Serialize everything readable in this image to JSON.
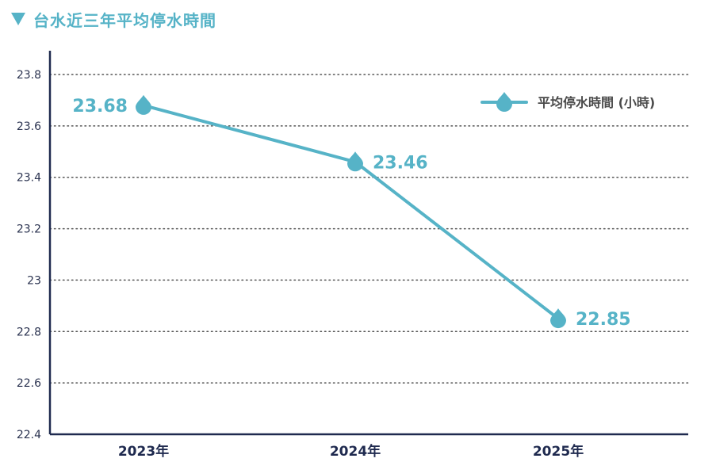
{
  "title": "台水近三年平均停水時間",
  "colors": {
    "accent": "#56b3c7",
    "axis": "#1f2a4f",
    "grid": "#555555"
  },
  "chart_data": {
    "type": "line",
    "title": "台水近三年平均停水時間",
    "categories": [
      "2023年",
      "2024年",
      "2025年"
    ],
    "series": [
      {
        "name": "平均停水時間 (小時)",
        "values": [
          23.68,
          23.46,
          22.85
        ],
        "labels": [
          "23.68",
          "23.46",
          "22.85"
        ]
      }
    ],
    "ylim": [
      22.4,
      23.8
    ],
    "yticks": [
      22.4,
      22.6,
      22.8,
      23,
      23.2,
      23.4,
      23.6,
      23.8
    ],
    "ytick_labels": [
      "22.4",
      "22.6",
      "22.8",
      "23",
      "23.2",
      "23.4",
      "23.6",
      "23.8"
    ],
    "xlabel": "",
    "ylabel": "",
    "grid": "horizontal-dotted",
    "legend_position": "top-right",
    "marker": "water-drop"
  }
}
